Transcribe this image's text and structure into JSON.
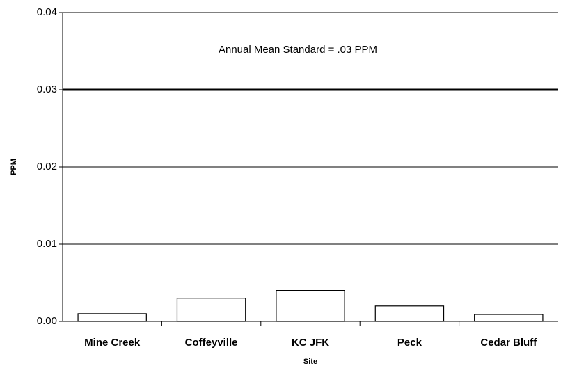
{
  "chart_data": {
    "type": "bar",
    "categories": [
      "Mine Creek",
      "Coffeyville",
      "KC JFK",
      "Peck",
      "Cedar Bluff"
    ],
    "values": [
      0.001,
      0.003,
      0.004,
      0.002,
      0.0009
    ],
    "color": "#ffffff",
    "x_label": "Site",
    "y_label": "PPM",
    "ylim": [
      0,
      0.04
    ],
    "yticks": [
      {
        "value": 0,
        "label": "0.00"
      },
      0.01,
      0.02,
      0.03,
      0.04
    ],
    "grid": true,
    "reference_line": {
      "value": 0.03,
      "label": "Annual Mean Standard = .03 PPM"
    }
  }
}
